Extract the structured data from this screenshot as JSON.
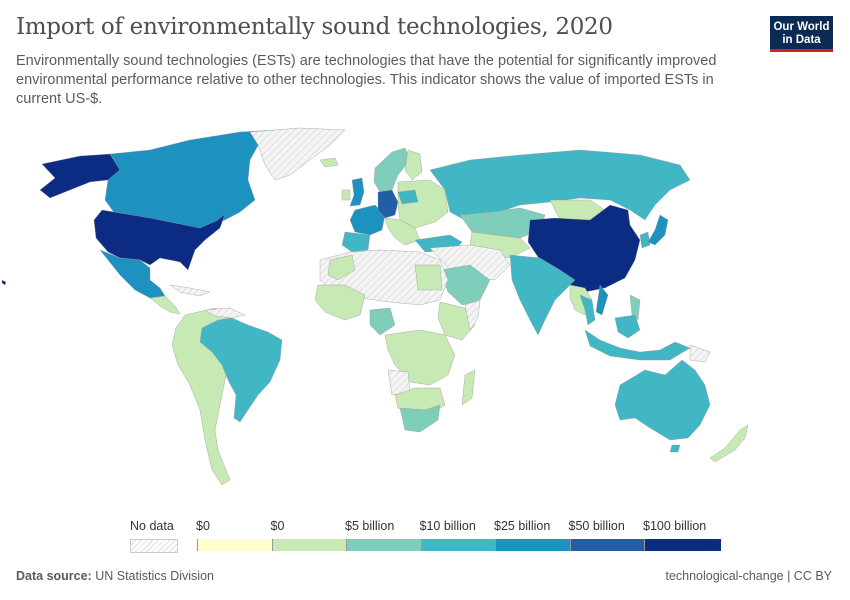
{
  "header": {
    "title": "Import of environmentally sound technologies, 2020",
    "subtitle": "Environmentally sound technologies (ESTs) are technologies that have the potential for significantly improved environmental performance relative to other technologies. This indicator shows the value of imported ESTs in current US-$.",
    "logo_line1": "Our World",
    "logo_line2": "in Data"
  },
  "legend": {
    "no_data_label": "No data",
    "bins": [
      {
        "label": "$0",
        "color": "#ffffcc"
      },
      {
        "label": "$0",
        "color": "#c7e9b4"
      },
      {
        "label": "$5 billion",
        "color": "#7fcdbb"
      },
      {
        "label": "$10 billion",
        "color": "#41b6c4"
      },
      {
        "label": "$25 billion",
        "color": "#1d91c0"
      },
      {
        "label": "$50 billion",
        "color": "#225ea8"
      },
      {
        "label": "$100 billion",
        "color": "#0c2c84"
      }
    ]
  },
  "colors": {
    "nodata": "#e9e9e9",
    "b1": "#c7e9b4",
    "b2": "#7fcdbb",
    "b3": "#41b6c4",
    "b4": "#1d91c0",
    "b5": "#225ea8",
    "b6": "#0c2c84"
  },
  "regions": [
    {
      "name": "United States",
      "bin": "b6"
    },
    {
      "name": "Alaska",
      "bin": "b6"
    },
    {
      "name": "Canada",
      "bin": "b4"
    },
    {
      "name": "Mexico",
      "bin": "b4"
    },
    {
      "name": "Greenland",
      "bin": "nodata"
    },
    {
      "name": "Brazil",
      "bin": "b3"
    },
    {
      "name": "South America",
      "bin": "b1"
    },
    {
      "name": "Russia",
      "bin": "b3"
    },
    {
      "name": "China",
      "bin": "b6"
    },
    {
      "name": "Germany",
      "bin": "b5"
    },
    {
      "name": "France",
      "bin": "b4"
    },
    {
      "name": "United Kingdom",
      "bin": "b4"
    },
    {
      "name": "India",
      "bin": "b3"
    },
    {
      "name": "Australia",
      "bin": "b3"
    },
    {
      "name": "Kazakhstan",
      "bin": "b2"
    },
    {
      "name": "Saudi Arabia",
      "bin": "b2"
    },
    {
      "name": "South Africa",
      "bin": "b2"
    },
    {
      "name": "Japan",
      "bin": "b4"
    }
  ],
  "footer": {
    "source_label": "Data source:",
    "source_value": "UN Statistics Division",
    "right": "technological-change | CC BY"
  }
}
